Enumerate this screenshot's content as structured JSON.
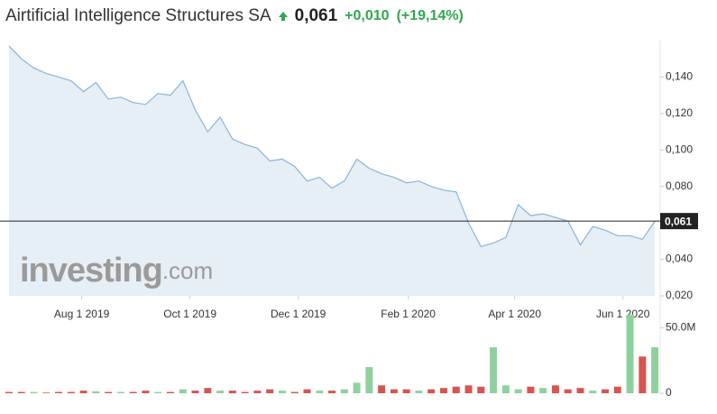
{
  "header": {
    "title": "Airtificial Intelligence Structures SA",
    "price": "0,061",
    "change": "+0,010",
    "change_pct": "(+19,14%)"
  },
  "chart_data": {
    "type": "area",
    "x": [
      "Jun 21 2019",
      "Jun 28 2019",
      "Jul 5 2019",
      "Jul 12 2019",
      "Jul 19 2019",
      "Jul 26 2019",
      "Aug 2 2019",
      "Aug 9 2019",
      "Aug 16 2019",
      "Aug 23 2019",
      "Aug 30 2019",
      "Sep 6 2019",
      "Sep 13 2019",
      "Sep 20 2019",
      "Sep 27 2019",
      "Oct 4 2019",
      "Oct 11 2019",
      "Oct 18 2019",
      "Oct 25 2019",
      "Nov 1 2019",
      "Nov 8 2019",
      "Nov 15 2019",
      "Nov 22 2019",
      "Nov 29 2019",
      "Dec 6 2019",
      "Dec 13 2019",
      "Dec 20 2019",
      "Dec 27 2019",
      "Jan 3 2020",
      "Jan 10 2020",
      "Jan 17 2020",
      "Jan 24 2020",
      "Jan 31 2020",
      "Feb 7 2020",
      "Feb 14 2020",
      "Feb 21 2020",
      "Feb 28 2020",
      "Mar 6 2020",
      "Mar 13 2020",
      "Mar 20 2020",
      "Mar 27 2020",
      "Apr 3 2020",
      "Apr 10 2020",
      "Apr 17 2020",
      "Apr 24 2020",
      "May 1 2020",
      "May 8 2020",
      "May 15 2020",
      "May 22 2020",
      "May 29 2020",
      "Jun 5 2020",
      "Jun 12 2020",
      "Jun 19 2020"
    ],
    "values": [
      0.157,
      0.15,
      0.145,
      0.142,
      0.14,
      0.138,
      0.132,
      0.137,
      0.128,
      0.129,
      0.126,
      0.125,
      0.131,
      0.13,
      0.138,
      0.122,
      0.11,
      0.118,
      0.106,
      0.103,
      0.101,
      0.094,
      0.095,
      0.091,
      0.083,
      0.085,
      0.079,
      0.083,
      0.095,
      0.09,
      0.087,
      0.085,
      0.082,
      0.083,
      0.08,
      0.078,
      0.077,
      0.06,
      0.047,
      0.049,
      0.052,
      0.07,
      0.064,
      0.065,
      0.063,
      0.061,
      0.048,
      0.058,
      0.056,
      0.053,
      0.053,
      0.051,
      0.061
    ],
    "color": "#8ab4d8",
    "fill": "#e6eef6",
    "xlim": [
      "Jun 20 2019",
      "Jun 22 2020"
    ],
    "xticks": [
      "Aug 1 2019",
      "Oct 1 2019",
      "Dec 1 2019",
      "Feb 1 2020",
      "Apr 1 2020",
      "Jun 1 2020"
    ],
    "ylim": [
      0.02,
      0.16
    ],
    "yticks": [
      {
        "value": 0.02,
        "label": "0,020"
      },
      {
        "value": 0.04,
        "label": "0,040"
      },
      {
        "value": 0.06,
        "label": "0,060"
      },
      {
        "value": 0.08,
        "label": "0,080"
      },
      {
        "value": 0.1,
        "label": "0,100"
      },
      {
        "value": 0.12,
        "label": "0,120"
      },
      {
        "value": 0.14,
        "label": "0,140"
      }
    ],
    "last_line": {
      "value": 0.061,
      "label": "0,061"
    },
    "watermark": [
      "investing",
      ".com"
    ],
    "volume": {
      "values": [
        1000000,
        1000000,
        1000000,
        500000,
        1000000,
        1000000,
        2000000,
        1500000,
        1000000,
        1000000,
        1000000,
        2000000,
        1000000,
        1000000,
        3000000,
        2000000,
        4000000,
        2000000,
        2000000,
        1000000,
        2000000,
        3000000,
        2000000,
        1000000,
        3000000,
        2000000,
        2000000,
        3000000,
        8000000,
        20000000,
        6000000,
        3000000,
        3000000,
        2000000,
        3000000,
        4000000,
        5000000,
        6000000,
        5000000,
        35000000,
        6000000,
        3000000,
        5000000,
        4000000,
        6000000,
        3000000,
        4000000,
        2000000,
        3000000,
        5000000,
        60000000,
        28000000,
        35000000
      ],
      "colors": [
        "#d9534f",
        "#d9534f",
        "#8fd19e",
        "#d9534f",
        "#d9534f",
        "#d9534f",
        "#d9534f",
        "#8fd19e",
        "#d9534f",
        "#8fd19e",
        "#d9534f",
        "#d9534f",
        "#8fd19e",
        "#d9534f",
        "#8fd19e",
        "#d9534f",
        "#d9534f",
        "#8fd19e",
        "#d9534f",
        "#d9534f",
        "#d9534f",
        "#d9534f",
        "#8fd19e",
        "#d9534f",
        "#d9534f",
        "#8fd19e",
        "#d9534f",
        "#8fd19e",
        "#8fd19e",
        "#8fd19e",
        "#d9534f",
        "#d9534f",
        "#d9534f",
        "#8fd19e",
        "#d9534f",
        "#d9534f",
        "#d9534f",
        "#d9534f",
        "#d9534f",
        "#8fd19e",
        "#8fd19e",
        "#8fd19e",
        "#d9534f",
        "#8fd19e",
        "#d9534f",
        "#d9534f",
        "#d9534f",
        "#8fd19e",
        "#d9534f",
        "#d9534f",
        "#8fd19e",
        "#d9534f",
        "#8fd19e"
      ],
      "ylim": [
        0,
        55000000
      ],
      "yticks": [
        0,
        {
          "value": 50000000,
          "label": "50.0M"
        }
      ]
    }
  }
}
